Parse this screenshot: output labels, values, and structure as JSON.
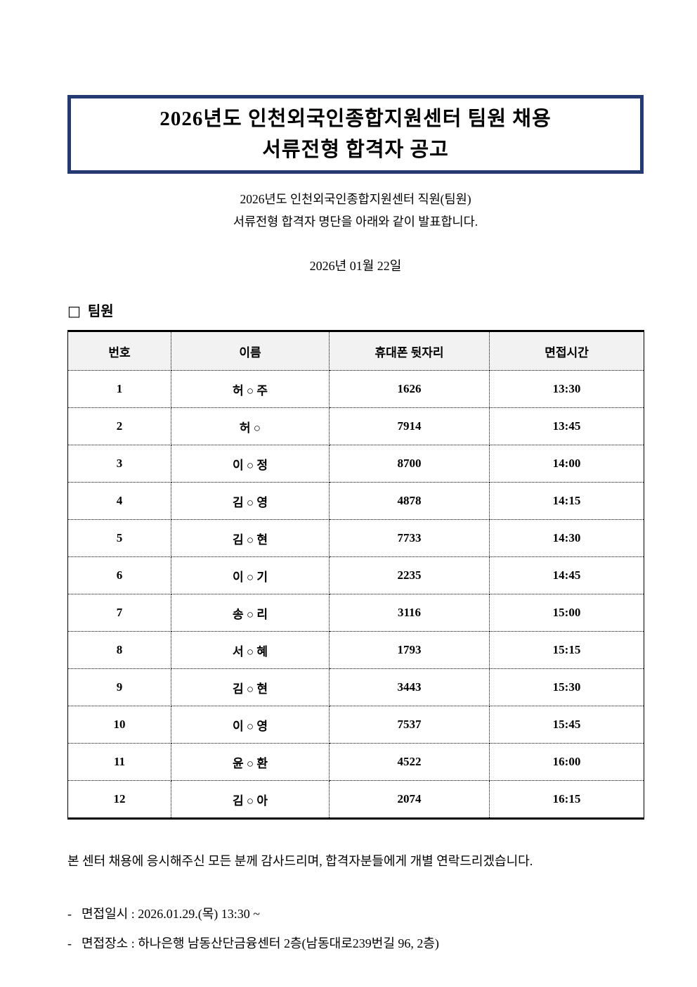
{
  "document": {
    "title_lines": [
      "2026년도 인천외국인종합지원센터 팀원 채용",
      "서류전형 합격자 공고"
    ],
    "intro_lines": [
      "2026년도 인천외국인종합지원센터 직원(팀원)",
      "서류전형 합격자 명단을 아래와 같이 발표합니다."
    ],
    "date": "2026년 01월 22일",
    "section": {
      "marker": "□",
      "title": "팀원"
    },
    "closing": "본 센터 채용에 응시해주신 모든 분께 감사드리며, 합격자분들에게 개별 연락드리겠습니다.",
    "notes": [
      {
        "dash": "-",
        "text": "면접일시 : 2026.01.29.(목) 13:30 ~"
      },
      {
        "dash": "-",
        "text": "면접장소 : 하나은행 남동산단금융센터 2층(남동대로239번길 96, 2층)"
      }
    ],
    "colors": {
      "title_border": "#243a70",
      "table_header_bg": "#f2f2f2",
      "text": "#000000"
    }
  },
  "table": {
    "headers": [
      "번호",
      "이름",
      "휴대폰 뒷자리",
      "면접시간"
    ],
    "rows": [
      [
        "1",
        "허 ○ 주",
        "1626",
        "13:30"
      ],
      [
        "2",
        "허 ○",
        "7914",
        "13:45"
      ],
      [
        "3",
        "이 ○ 정",
        "8700",
        "14:00"
      ],
      [
        "4",
        "김 ○ 영",
        "4878",
        "14:15"
      ],
      [
        "5",
        "김 ○ 현",
        "7733",
        "14:30"
      ],
      [
        "6",
        "이 ○ 기",
        "2235",
        "14:45"
      ],
      [
        "7",
        "송 ○ 리",
        "3116",
        "15:00"
      ],
      [
        "8",
        "서 ○ 혜",
        "1793",
        "15:15"
      ],
      [
        "9",
        "김 ○ 현",
        "3443",
        "15:30"
      ],
      [
        "10",
        "이 ○ 영",
        "7537",
        "15:45"
      ],
      [
        "11",
        "윤 ○ 환",
        "4522",
        "16:00"
      ],
      [
        "12",
        "김 ○ 아",
        "2074",
        "16:15"
      ]
    ]
  }
}
